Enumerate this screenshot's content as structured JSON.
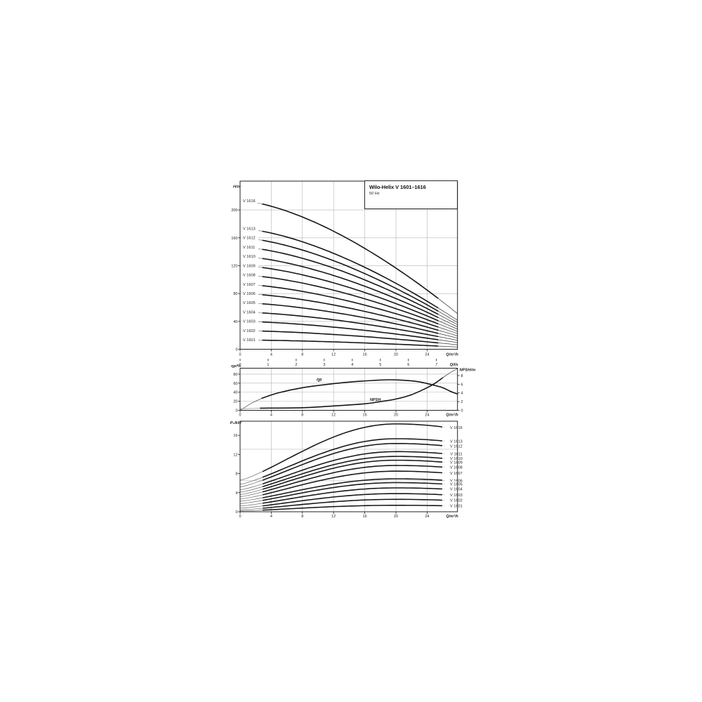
{
  "header": {
    "title": "Wilo-Helix V 1601–1616",
    "subtitle": "50 Hz"
  },
  "chart_data": [
    {
      "id": "head-curves",
      "type": "line",
      "ylabel": "H/m",
      "xlabel": "Q/m³/h",
      "x2label": "Q/l/s",
      "x_ticks": [
        0,
        4,
        8,
        12,
        16,
        20,
        24
      ],
      "x2_ticks": [
        0,
        1,
        2,
        3,
        4,
        5,
        6,
        7
      ],
      "y_ticks": [
        0,
        40,
        80,
        120,
        160,
        200
      ],
      "xlim": [
        0,
        27.9
      ],
      "ylim": [
        0,
        241
      ],
      "grid": true,
      "legend_position": "labels-left",
      "curves": [
        {
          "label": "V 1616",
          "h0": 213.3
        },
        {
          "label": "V 1613",
          "h0": 173.3
        },
        {
          "label": "V 1612",
          "h0": 160.0
        },
        {
          "label": "V 1611",
          "h0": 146.7
        },
        {
          "label": "V 1610",
          "h0": 133.3
        },
        {
          "label": "V 1609",
          "h0": 120.0
        },
        {
          "label": "V 1608",
          "h0": 106.7
        },
        {
          "label": "V 1607",
          "h0": 93.3
        },
        {
          "label": "V 1606",
          "h0": 80.0
        },
        {
          "label": "V 1605",
          "h0": 66.7
        },
        {
          "label": "V 1604",
          "h0": 53.3
        },
        {
          "label": "V 1603",
          "h0": 40.0
        },
        {
          "label": "V 1602",
          "h0": 26.7
        },
        {
          "label": "V 1601",
          "h0": 13.3
        }
      ],
      "droop": {
        "coeff": 0.76,
        "exp": 1.55
      }
    },
    {
      "id": "efficiency-npsh",
      "type": "line",
      "ylabel": "ηp/%",
      "y2label": "NPSH/m",
      "xlabel": "Q/m³/h",
      "x_ticks": [
        0,
        4,
        8,
        12,
        16,
        20,
        24
      ],
      "y_ticks": [
        0,
        20,
        40,
        60,
        80
      ],
      "y2_ticks": [
        0,
        2,
        4,
        6,
        8
      ],
      "xlim": [
        0,
        27.9
      ],
      "ylim": [
        0,
        92
      ],
      "y2lim": [
        0,
        9.6
      ],
      "series": [
        {
          "name": "ηp",
          "points": [
            [
              0,
              0
            ],
            [
              1.5,
              16
            ],
            [
              3,
              28
            ],
            [
              5,
              39
            ],
            [
              8,
              50
            ],
            [
              11,
              57
            ],
            [
              14,
              62.5
            ],
            [
              17,
              66
            ],
            [
              19,
              67.5
            ],
            [
              21,
              66.5
            ],
            [
              23,
              63
            ],
            [
              25,
              55
            ],
            [
              26,
              50
            ],
            [
              27,
              42
            ],
            [
              27.9,
              36
            ]
          ]
        },
        {
          "name": "NPSH",
          "points": [
            [
              0,
              0.35
            ],
            [
              3,
              0.5
            ],
            [
              8,
              0.6
            ],
            [
              12,
              1.0
            ],
            [
              16,
              1.5
            ],
            [
              18,
              2.0
            ],
            [
              20,
              2.6
            ],
            [
              22,
              3.6
            ],
            [
              24,
              5.2
            ],
            [
              25,
              6.2
            ],
            [
              26,
              7.5
            ],
            [
              27,
              8.7
            ],
            [
              27.9,
              9.6
            ]
          ]
        }
      ]
    },
    {
      "id": "power-curves",
      "type": "line",
      "ylabel": "P₁/kW",
      "xlabel": "Q/m³/h",
      "x_ticks": [
        0,
        4,
        8,
        12,
        16,
        20,
        24
      ],
      "y_ticks": [
        0,
        4,
        8,
        12,
        16
      ],
      "xlim": [
        0,
        27.9
      ],
      "ylim": [
        0,
        19
      ],
      "ref_lines": [
        13.1,
        6.5
      ],
      "legend_position": "labels-right",
      "curves": [
        {
          "label": "V 1616",
          "p0": 6.6,
          "p_peak": 18.4,
          "p_end": 17.3
        },
        {
          "label": "V 1613",
          "p0": 5.75,
          "p_peak": 15.3,
          "p_end": 14.5
        },
        {
          "label": "V 1612",
          "p0": 5.2,
          "p_peak": 14.3,
          "p_end": 13.5
        },
        {
          "label": "V 1611",
          "p0": 4.6,
          "p_peak": 12.6,
          "p_end": 11.9
        },
        {
          "label": "V 1610",
          "p0": 4.1,
          "p_peak": 11.6,
          "p_end": 10.9
        },
        {
          "label": "V 1609",
          "p0": 3.6,
          "p_peak": 10.8,
          "p_end": 10.1
        },
        {
          "label": "V 1608",
          "p0": 3.15,
          "p_peak": 9.7,
          "p_end": 9.1
        },
        {
          "label": "V 1607",
          "p0": 2.65,
          "p_peak": 8.5,
          "p_end": 7.9
        },
        {
          "label": "V 1606",
          "p0": 2.2,
          "p_peak": 6.9,
          "p_end": 6.4
        },
        {
          "label": "V 1605",
          "p0": 1.7,
          "p_peak": 6.1,
          "p_end": 5.6
        },
        {
          "label": "V 1604",
          "p0": 1.2,
          "p_peak": 5.0,
          "p_end": 4.6
        },
        {
          "label": "V 1603",
          "p0": 0.75,
          "p_peak": 3.8,
          "p_end": 3.4
        },
        {
          "label": "V 1602",
          "p0": 0.4,
          "p_peak": 2.6,
          "p_end": 2.3
        },
        {
          "label": "V 1601",
          "p0": 0.15,
          "p_peak": 1.35,
          "p_end": 1.2
        }
      ]
    }
  ]
}
